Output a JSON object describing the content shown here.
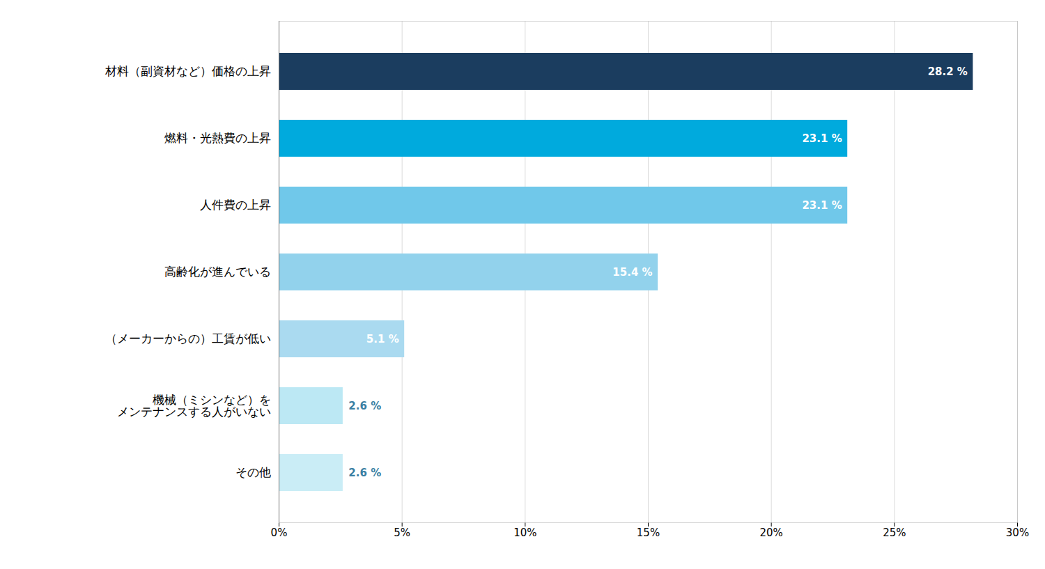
{
  "chart_data": {
    "type": "bar",
    "orientation": "horizontal",
    "categories": [
      "材料（副資材など）価格の上昇",
      "燃料・光熱費の上昇",
      "人件費の上昇",
      "高齢化が進んでいる",
      "（メーカーからの）工賃が低い",
      "機械（ミシンなど）を\nメンテナンスする人がいない",
      "その他"
    ],
    "values": [
      28.2,
      23.1,
      23.1,
      15.4,
      5.1,
      2.6,
      2.6
    ],
    "value_labels": [
      "28.2 %",
      "23.1 %",
      "23.1 %",
      "15.4 %",
      "5.1 %",
      "2.6 %",
      "2.6 %"
    ],
    "colors": [
      "#1b3d5f",
      "#00aadd",
      "#70c8ea",
      "#92d2ec",
      "#aadaf0",
      "#bce8f4",
      "#caedf6"
    ],
    "xlim": [
      0,
      30
    ],
    "xticks": [
      {
        "value": 0,
        "label": "0%"
      },
      {
        "value": 5,
        "label": "5%"
      },
      {
        "value": 10,
        "label": "10%"
      },
      {
        "value": 15,
        "label": "15%"
      },
      {
        "value": 20,
        "label": "20%"
      },
      {
        "value": 25,
        "label": "25%"
      },
      {
        "value": 30,
        "label": "30%"
      }
    ],
    "grid": true,
    "data_labels": true
  }
}
